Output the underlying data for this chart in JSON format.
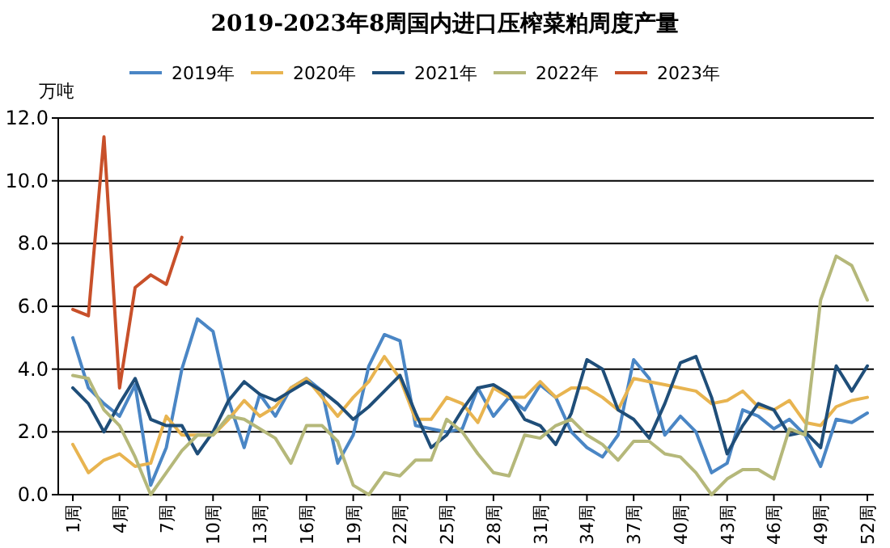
{
  "chart_data": {
    "type": "line",
    "title": "2019-2023年8周国内进口压榨菜粕周度产量",
    "ylabel": "万吨",
    "categories": [
      "1周",
      null,
      null,
      "4周",
      null,
      null,
      "7周",
      null,
      null,
      "10周",
      null,
      null,
      "13周",
      null,
      null,
      "16周",
      null,
      null,
      "19周",
      null,
      null,
      "22周",
      null,
      null,
      "25周",
      null,
      null,
      "28周",
      null,
      null,
      "31周",
      null,
      null,
      "34周",
      null,
      null,
      "37周",
      null,
      null,
      "40周",
      null,
      null,
      "43周",
      null,
      null,
      "46周",
      null,
      null,
      "49周",
      null,
      null,
      "52周"
    ],
    "ylim": [
      0,
      12
    ],
    "yticks": [
      {
        "value": 0,
        "label": "0.0"
      },
      {
        "value": 2,
        "label": "2.0"
      },
      {
        "value": 4,
        "label": "4.0"
      },
      {
        "value": 6,
        "label": "6.0"
      },
      {
        "value": 8,
        "label": "8.0"
      },
      {
        "value": 10,
        "label": "10.0"
      },
      {
        "value": 12,
        "label": "12.0"
      }
    ],
    "grid": "y",
    "legend": "top",
    "marker": "none",
    "line_style": "solid",
    "series": [
      {
        "name": "2019年",
        "color": "#4a86c5",
        "values": [
          5.0,
          3.4,
          2.9,
          2.5,
          3.5,
          0.3,
          1.5,
          4.0,
          5.6,
          5.2,
          3.0,
          1.5,
          3.2,
          2.5,
          3.4,
          3.7,
          3.3,
          1.0,
          1.9,
          4.1,
          5.1,
          4.9,
          2.2,
          2.1,
          2.0,
          2.1,
          3.4,
          2.5,
          3.1,
          2.7,
          3.5,
          3.1,
          2.0,
          1.5,
          1.2,
          1.9,
          4.3,
          3.7,
          1.9,
          2.5,
          2.0,
          0.7,
          1.0,
          2.7,
          2.5,
          2.1,
          2.4,
          1.9,
          0.9,
          2.4,
          2.3,
          2.6
        ]
      },
      {
        "name": "2020年",
        "color": "#e8b450",
        "values": [
          1.6,
          0.7,
          1.1,
          1.3,
          0.9,
          1.0,
          2.5,
          1.9,
          1.9,
          1.9,
          2.4,
          3.0,
          2.5,
          2.8,
          3.4,
          3.7,
          3.1,
          2.5,
          3.1,
          3.6,
          4.4,
          3.7,
          2.4,
          2.4,
          3.1,
          2.9,
          2.3,
          3.4,
          3.1,
          3.1,
          3.6,
          3.1,
          3.4,
          3.4,
          3.1,
          2.7,
          3.7,
          3.6,
          3.5,
          3.4,
          3.3,
          2.9,
          3.0,
          3.3,
          2.8,
          2.7,
          3.0,
          2.3,
          2.2,
          2.8,
          3.0,
          3.1
        ]
      },
      {
        "name": "2021年",
        "color": "#1f4e79",
        "values": [
          3.4,
          2.9,
          2.0,
          2.9,
          3.7,
          2.4,
          2.2,
          2.2,
          1.3,
          2.0,
          3.0,
          3.6,
          3.2,
          3.0,
          3.3,
          3.6,
          3.3,
          2.9,
          2.4,
          2.8,
          3.3,
          3.8,
          2.6,
          1.5,
          1.9,
          2.7,
          3.4,
          3.5,
          3.2,
          2.4,
          2.2,
          1.6,
          2.6,
          4.3,
          4.0,
          2.7,
          2.4,
          1.8,
          2.9,
          4.2,
          4.4,
          3.1,
          1.3,
          2.2,
          2.9,
          2.7,
          1.9,
          2.0,
          1.5,
          4.1,
          3.3,
          4.1
        ]
      },
      {
        "name": "2022年",
        "color": "#b5b87a",
        "values": [
          3.8,
          3.7,
          2.7,
          2.2,
          1.2,
          0.0,
          0.7,
          1.4,
          1.9,
          1.9,
          2.5,
          2.4,
          2.1,
          1.8,
          1.0,
          2.2,
          2.2,
          1.7,
          0.3,
          0.0,
          0.7,
          0.6,
          1.1,
          1.1,
          2.4,
          2.0,
          1.3,
          0.7,
          0.6,
          1.9,
          1.8,
          2.2,
          2.4,
          1.9,
          1.6,
          1.1,
          1.7,
          1.7,
          1.3,
          1.2,
          0.7,
          0.0,
          0.5,
          0.8,
          0.8,
          0.5,
          2.1,
          1.9,
          6.2,
          7.6,
          7.3,
          6.2
        ]
      },
      {
        "name": "2023年",
        "color": "#c8502a",
        "values": [
          5.9,
          5.7,
          11.4,
          3.4,
          6.6,
          7.0,
          6.7,
          8.2,
          null,
          null,
          null,
          null,
          null,
          null,
          null,
          null,
          null,
          null,
          null,
          null,
          null,
          null,
          null,
          null,
          null,
          null,
          null,
          null,
          null,
          null,
          null,
          null,
          null,
          null,
          null,
          null,
          null,
          null,
          null,
          null,
          null,
          null,
          null,
          null,
          null,
          null,
          null,
          null,
          null,
          null,
          null,
          null
        ]
      }
    ]
  }
}
